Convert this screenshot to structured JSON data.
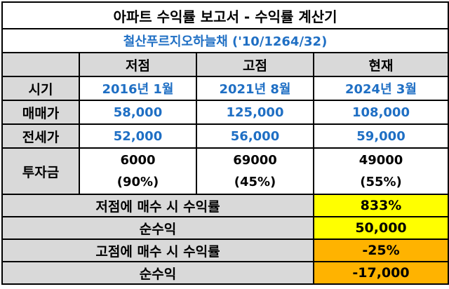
{
  "title": "아파트 수익률 보고서 - 수익률 계산기",
  "subtitle": "철산푸르지오하늘채 ('10/1264/32)",
  "columns": [
    "저점",
    "고점",
    "현재"
  ],
  "rows": {
    "period": {
      "label": "시기",
      "values": [
        "2016년 1월",
        "2021년 8월",
        "2024년 3월"
      ]
    },
    "sale_price": {
      "label": "매매가",
      "values": [
        "58,000",
        "125,000",
        "108,000"
      ]
    },
    "jeonse_price": {
      "label": "전세가",
      "values": [
        "52,000",
        "56,000",
        "59,000"
      ]
    },
    "investment": {
      "label": "투자금",
      "values": [
        "6000",
        "69000",
        "49000"
      ],
      "ratios": [
        "(90%)",
        "(45%)",
        "(55%)"
      ]
    }
  },
  "results": [
    {
      "label": "저점에 매수 시 수익률",
      "value": "833%",
      "color": "#ffff00"
    },
    {
      "label": "순수익",
      "value": "50,000",
      "color": "#ffff00"
    },
    {
      "label": "고점에 매수 시 수익률",
      "value": "-25%",
      "color": "#ffb300"
    },
    {
      "label": "순수익",
      "value": "-17,000",
      "color": "#ffb300"
    }
  ]
}
